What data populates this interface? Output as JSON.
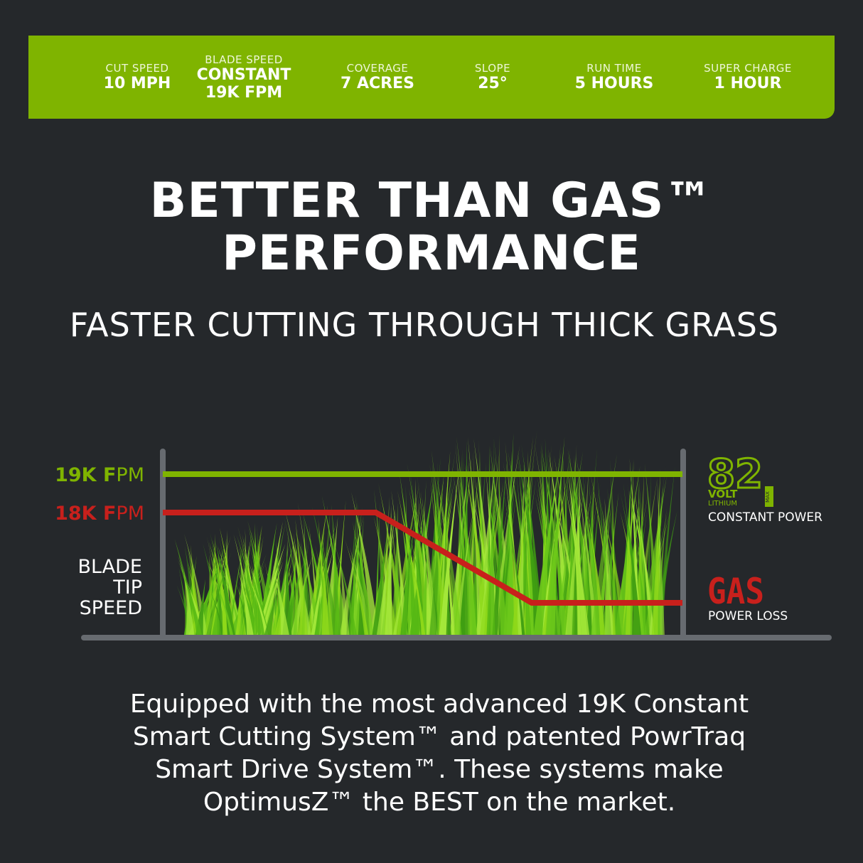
{
  "specs": [
    {
      "label": "CUT SPEED",
      "value": "10 MPH",
      "value2": ""
    },
    {
      "label": "BLADE SPEED",
      "value": "CONSTANT",
      "value2": "19K FPM"
    },
    {
      "label": "COVERAGE",
      "value": "7 ACRES",
      "value2": ""
    },
    {
      "label": "SLOPE",
      "value": "25°",
      "value2": ""
    },
    {
      "label": "RUN TIME",
      "value": "5 HOURS",
      "value2": ""
    },
    {
      "label": "SUPER CHARGE",
      "value": "1 HOUR",
      "value2": ""
    }
  ],
  "headline": {
    "line1": "BETTER THAN GAS™",
    "line2": "PERFORMANCE"
  },
  "subhead": "FASTER CUTTING THROUGH THICK GRASS",
  "chart_data": {
    "type": "line",
    "ylabel_lines": [
      "BLADE",
      "TIP",
      "SPEED"
    ],
    "y_ticks": [
      {
        "bold": "19K F",
        "rest": "PM",
        "value": 19,
        "color": "#7fb400"
      },
      {
        "bold": "18K F",
        "rest": "PM",
        "value": 18,
        "color": "#c8201c"
      }
    ],
    "series": [
      {
        "name": "82 VOLT LITHIUM MAX",
        "caption": "CONSTANT POWER",
        "color": "#7fb400",
        "points": [
          [
            0,
            19
          ],
          [
            1,
            19
          ]
        ]
      },
      {
        "name": "GAS",
        "caption": "POWER LOSS",
        "color": "#c8201c",
        "points": [
          [
            0,
            18
          ],
          [
            0.41,
            18
          ],
          [
            0.71,
            17
          ],
          [
            1,
            17
          ]
        ]
      }
    ],
    "legend_82": {
      "number": "82",
      "volt": "VOLT",
      "lithium": "LITHIUM",
      "max": "MAX"
    },
    "colors": {
      "axis": "#676b70",
      "grass_light": "#8ed81a",
      "grass_dark": "#3f9e12"
    }
  },
  "description": [
    "Equipped with the most advanced 19K Constant",
    "Smart Cutting System™ and patented PowrTraq",
    "Smart Drive System™. These systems make",
    "OptimusZ™ the BEST on the market."
  ]
}
